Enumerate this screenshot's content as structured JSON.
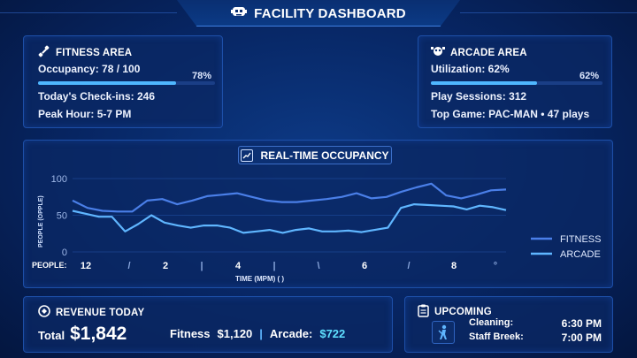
{
  "header": {
    "title": "FACILITY DASHBOARD",
    "icon": "robot-head-icon"
  },
  "fitness": {
    "title": "FITNESS AREA",
    "occupancy_label": "Occupancy: 78 / 100",
    "occupancy_fraction": 0.78,
    "occupancy_pct": "78%",
    "checkins_label": "Today's Check-ins:",
    "checkins_value": "246",
    "peak_label": "Peak Hour:",
    "peak_value": "5-7 PM"
  },
  "arcade": {
    "title": "ARCADE AREA",
    "utilization_label": "Utilization: 62%",
    "utilization_fraction": 0.62,
    "utilization_pct": "62%",
    "sessions_label": "Play Sessions:",
    "sessions_value": "312",
    "topgame_label": "Top Game:",
    "topgame_value": "PAC-MAN • 47 plays"
  },
  "chart": {
    "title": "REAL-TIME OCCUPANCY",
    "ylabel": "PEOPLE (OPPLE)",
    "xlabel": "TIME (MPM) (  )",
    "people_label": "PEOPLE:",
    "y_ticks": [
      "100",
      "50",
      "0"
    ],
    "x_ticks": [
      "12",
      "/",
      "2",
      "|",
      "4",
      "|",
      "\\",
      "6",
      "/",
      "8",
      "°"
    ]
  },
  "chart_data": {
    "type": "line",
    "ylim": [
      0,
      100
    ],
    "y_ticks": [
      0,
      50,
      100
    ],
    "grid": true,
    "legend": "right",
    "series": [
      {
        "name": "FITNESS",
        "color": "#4a7fe8",
        "values": [
          70,
          60,
          56,
          55,
          55,
          70,
          72,
          65,
          70,
          76,
          78,
          80,
          75,
          70,
          68,
          68,
          70,
          72,
          75,
          80,
          73,
          75,
          82,
          88,
          93,
          77,
          73,
          78,
          84,
          85
        ]
      },
      {
        "name": "ARCADE",
        "color": "#5fb6ff",
        "values": [
          56,
          52,
          48,
          48,
          28,
          38,
          50,
          40,
          36,
          33,
          36,
          36,
          33,
          26,
          28,
          30,
          26,
          30,
          32,
          28,
          28,
          29,
          27,
          30,
          33,
          60,
          65,
          64,
          63,
          62,
          58,
          63,
          61,
          57
        ]
      }
    ]
  },
  "revenue": {
    "title": "REVENUE TODAY",
    "total_label": "Total",
    "total_value": "$1,842",
    "fitness_label": "Fitness",
    "fitness_value": "$1,120",
    "divider": "|",
    "arcade_label": "Arcade:",
    "arcade_value": "$722"
  },
  "upcoming": {
    "title": "UPCOMING",
    "items": [
      {
        "label": "Cleaning:",
        "time": "6:30 PM"
      },
      {
        "label": "Staff Breek:",
        "time": "7:00 PM"
      }
    ]
  },
  "colors": {
    "accent": "#4fb7ff",
    "fitness_line": "#4a7fe8",
    "arcade_line": "#5fb6ff",
    "money": "#5fe0ff"
  }
}
